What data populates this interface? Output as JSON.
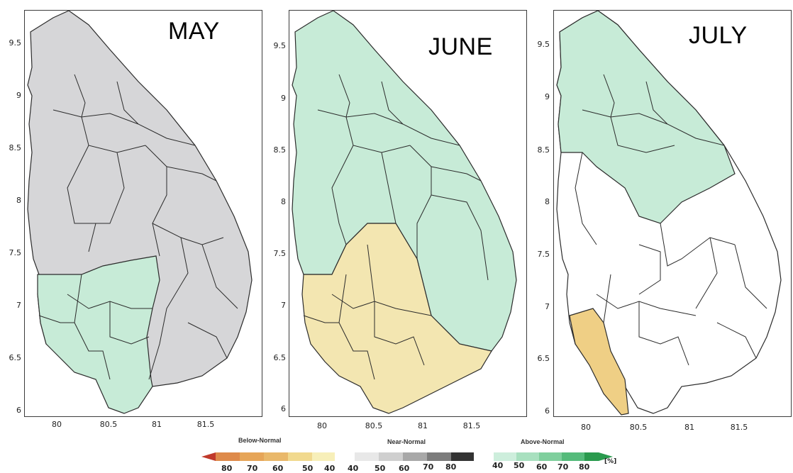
{
  "panels": [
    {
      "title": "MAY"
    },
    {
      "title": "JUNE"
    },
    {
      "title": "JULY"
    }
  ],
  "y_ticks": [
    "9.5",
    "9",
    "8.5",
    "8",
    "7.5",
    "7",
    "6.5",
    "6"
  ],
  "x_ticks": [
    "80",
    "80.5",
    "81",
    "81.5"
  ],
  "legend": {
    "below": {
      "title": "Below-Normal",
      "labels": [
        "80",
        "70",
        "60",
        "50",
        "40"
      ],
      "colors": [
        "#c0392b",
        "#de8a4a",
        "#e9b86a",
        "#f1d98e",
        "#f7efb9"
      ]
    },
    "near": {
      "title": "Near-Normal",
      "labels": [
        "40",
        "50",
        "60",
        "70",
        "80"
      ],
      "colors": [
        "#e8e8e8",
        "#cfcfcf",
        "#a8a8a8",
        "#7c7c7c",
        "#333333"
      ]
    },
    "above": {
      "title": "Above-Normal",
      "labels": [
        "40",
        "50",
        "60",
        "70",
        "80"
      ],
      "colors": [
        "#cdeedc",
        "#a8e0bf",
        "#7fcf9d",
        "#55bb7b",
        "#2a9a4e"
      ]
    },
    "unit": "[%]"
  },
  "colors": {
    "grey": "#d6d6d8",
    "green": "#c7ebd7",
    "yellow": "#f3e6b1",
    "white": "#ffffff",
    "orange": "#efcf85",
    "boundary": "#2b2b2b"
  }
}
